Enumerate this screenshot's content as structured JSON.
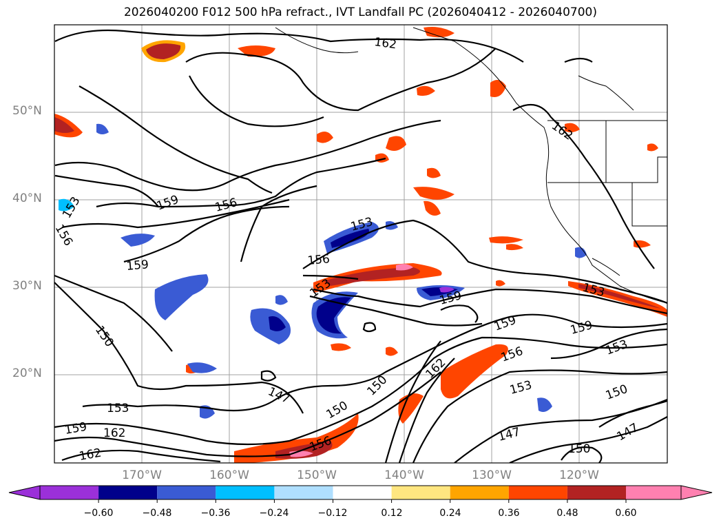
{
  "title": "2026040200 F012 500 hPa refract., IVT Landfall PC (2026040412 - 2026040700)",
  "map": {
    "lat_labels": [
      "50°N",
      "40°N",
      "30°N",
      "20°N"
    ],
    "lon_labels": [
      "170°W",
      "160°W",
      "150°W",
      "140°W",
      "130°W",
      "120°W"
    ],
    "lat_range": [
      10,
      60
    ],
    "lon_range": [
      -180,
      -110
    ],
    "gridlines": true,
    "contour_labels": [
      "162",
      "159",
      "156",
      "153",
      "156",
      "159",
      "150",
      "153",
      "159",
      "156",
      "153",
      "147",
      "159",
      "162",
      "150",
      "153",
      "156",
      "162",
      "147",
      "150",
      "159",
      "153",
      "150",
      "147",
      "150",
      "159",
      "153",
      "156",
      "162",
      "153",
      "162"
    ]
  },
  "colorbar": {
    "ticks": [
      "−0.60",
      "−0.48",
      "−0.36",
      "−0.24",
      "−0.12",
      "0.12",
      "0.24",
      "0.36",
      "0.48",
      "0.60"
    ],
    "colors": [
      "#9b30d9",
      "#00008b",
      "#3a5bd4",
      "#00bfff",
      "#afdfff",
      "#ffffff",
      "#ffe680",
      "#ffa500",
      "#ff4500",
      "#b22222",
      "#ff80b0"
    ],
    "extend": "both"
  }
}
